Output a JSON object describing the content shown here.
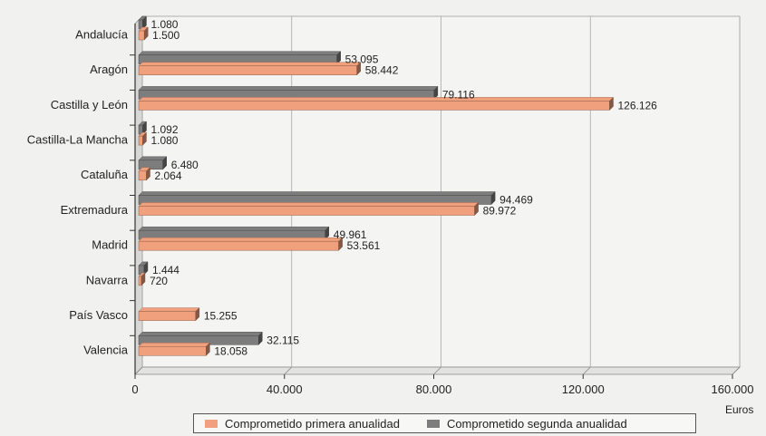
{
  "chart_data": {
    "type": "bar",
    "orientation": "horizontal",
    "categories": [
      "Andalucía",
      "Aragón",
      "Castilla y León",
      "Castilla-La Mancha",
      "Cataluña",
      "Extremadura",
      "Madrid",
      "Navarra",
      "País Vasco",
      "Valencia"
    ],
    "series": [
      {
        "name": "Comprometido segunda anualidad",
        "color": "#7d7d7d",
        "values": [
          1080,
          53095,
          79116,
          1092,
          6480,
          94469,
          49961,
          1444,
          null,
          32115
        ],
        "labels": [
          "1.080",
          "53.095",
          "79.116",
          "1.092",
          "6.480",
          "94.469",
          "49.961",
          "1.444",
          "",
          "32.115"
        ]
      },
      {
        "name": "Comprometido primera anualidad",
        "color": "#f0a07c",
        "values": [
          1500,
          58442,
          126126,
          1080,
          2064,
          89972,
          53561,
          720,
          15255,
          18058
        ],
        "labels": [
          "1.500",
          "58.442",
          "126.126",
          "1.080",
          "2.064",
          "89.972",
          "53.561",
          "720",
          "15.255",
          "18.058"
        ]
      }
    ],
    "xlim": [
      0,
      160000
    ],
    "xticks": [
      0,
      40000,
      80000,
      120000,
      160000
    ],
    "xtick_labels": [
      "0",
      "40.000",
      "80.000",
      "120.000",
      "160.000"
    ],
    "xlabel": "Euros",
    "grid": true,
    "legend_position": "bottom"
  },
  "legend": {
    "items": [
      {
        "label": "Comprometido primera anualidad",
        "color": "#f0a07c"
      },
      {
        "label": "Comprometido segunda anualidad",
        "color": "#7d7d7d"
      }
    ]
  }
}
